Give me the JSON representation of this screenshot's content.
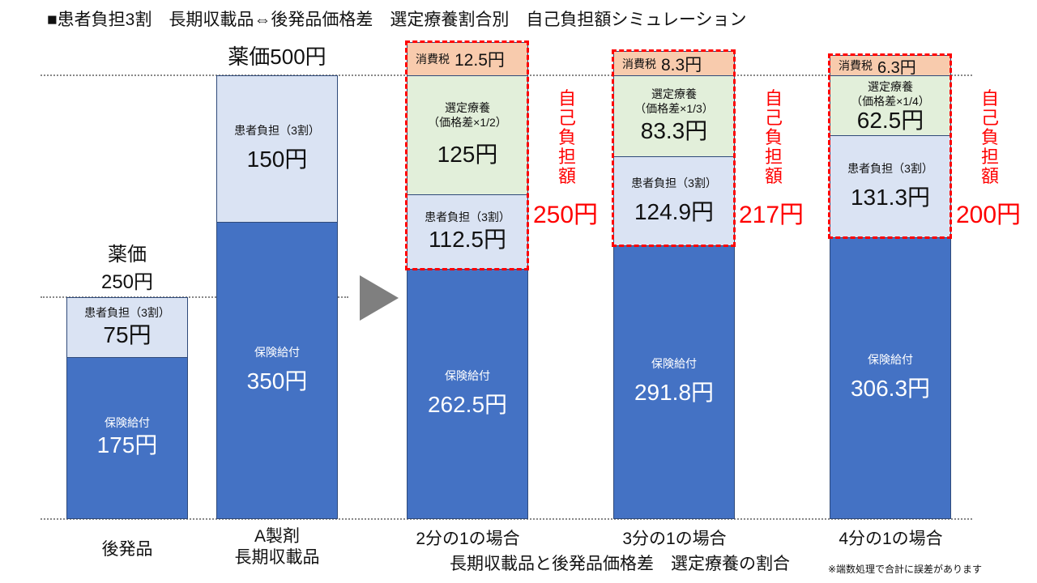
{
  "title": "■患者負担3割　長期収載品⇔後発品価格差　選定療養割合別　自己負担額シミュレーション",
  "generic": {
    "price_label": "薬価",
    "price": "250円",
    "copay_label": "患者負担（3割）",
    "copay": "75円",
    "insurance_label": "保険給付",
    "insurance": "175円",
    "name": "後発品"
  },
  "brand": {
    "price": "薬価500円",
    "copay_label": "患者負担（3割）",
    "copay": "150円",
    "insurance_label": "保険給付",
    "insurance": "350円",
    "name_line1": "A製剤",
    "name_line2": "長期収載品"
  },
  "cases": [
    {
      "tax_label": "消費税",
      "tax": "12.5円",
      "sel_label": "選定療養",
      "sel_sub": "（価格差×1/2）",
      "sel": "125円",
      "copay_label": "患者負担（3割）",
      "copay": "112.5円",
      "insurance_label": "保険給付",
      "insurance": "262.5円",
      "self_label": "自己負担額",
      "self": "250円",
      "name": "2分の1の場合"
    },
    {
      "tax_label": "消費税",
      "tax": "8.3円",
      "sel_label": "選定療養",
      "sel_sub": "（価格差×1/3）",
      "sel": "83.3円",
      "copay_label": "患者負担（3割）",
      "copay": "124.9円",
      "insurance_label": "保険給付",
      "insurance": "291.8円",
      "self_label": "自己負担額",
      "self": "217円",
      "name": "3分の1の場合"
    },
    {
      "tax_label": "消費税",
      "tax": "6.3円",
      "sel_label": "選定療養",
      "sel_sub": "（価格差×1/4）",
      "sel": "62.5円",
      "copay_label": "患者負担（3割）",
      "copay": "131.3円",
      "insurance_label": "保険給付",
      "insurance": "306.3円",
      "self_label": "自己負担額",
      "self": "200円",
      "name": "4分の1の場合"
    }
  ],
  "group_label": "長期収載品と後発品価格差　選定療養の割合",
  "footnote": "※端数処理で合計に誤差があります",
  "colors": {
    "insurance": "#4472c4",
    "copay": "#dae3f3",
    "selective": "#e2efda",
    "tax": "#f8cbad",
    "highlight": "#ff0000"
  }
}
